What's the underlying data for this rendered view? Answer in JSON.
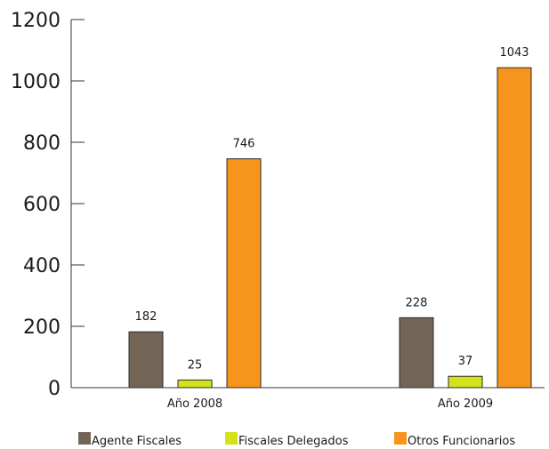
{
  "chart_data": {
    "type": "bar",
    "title": "",
    "xlabel": "",
    "ylabel": "",
    "categories": [
      "Año 2008",
      "Año 2009"
    ],
    "series": [
      {
        "name": "Agente Fiscales",
        "values": [
          182,
          228
        ],
        "color": "#736556"
      },
      {
        "name": "Fiscales Delegados",
        "values": [
          25,
          37
        ],
        "color": "#d4e21c"
      },
      {
        "name": "Otros Funcionarios",
        "values": [
          746,
          1043
        ],
        "color": "#f7941d"
      }
    ],
    "ylim": [
      0,
      1200
    ],
    "yticks": [
      0,
      200,
      400,
      600,
      800,
      1000,
      1200
    ],
    "grid": false,
    "legend_position": "bottom"
  }
}
